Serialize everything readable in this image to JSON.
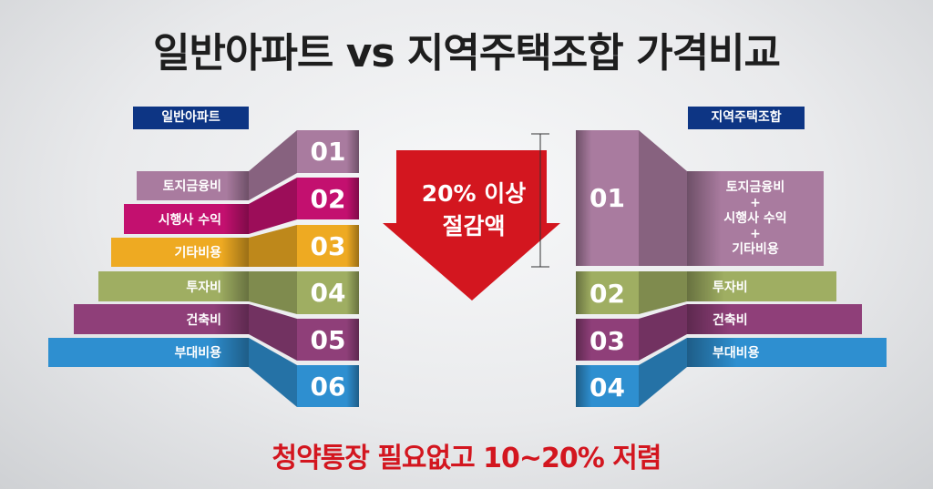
{
  "title": "일반아파트 vs 지역주택조합 가격비교",
  "left": {
    "header": "일반아파트",
    "items": [
      {
        "num": "01",
        "label": "토지금융비",
        "color": "#a97b9f"
      },
      {
        "num": "02",
        "label": "시행사 수익",
        "color": "#c3106f"
      },
      {
        "num": "03",
        "label": "기타비용",
        "color": "#eeaa22"
      },
      {
        "num": "04",
        "label": "투자비",
        "color": "#9fae62"
      },
      {
        "num": "05",
        "label": "건축비",
        "color": "#8f3f79"
      },
      {
        "num": "06",
        "label": "부대비용",
        "color": "#2e8fd0"
      }
    ]
  },
  "right": {
    "header": "지역주택조합",
    "items": [
      {
        "num": "01",
        "label_lines": [
          "토지금융비",
          "+",
          "시행사 수익",
          "+",
          "기타비용"
        ],
        "color": "#a97b9f"
      },
      {
        "num": "02",
        "label": "투자비",
        "color": "#9fae62"
      },
      {
        "num": "03",
        "label": "건축비",
        "color": "#8f3f79"
      },
      {
        "num": "04",
        "label": "부대비용",
        "color": "#2e8fd0"
      }
    ]
  },
  "arrow": {
    "line1": "20% 이상",
    "line2": "절감액",
    "color": "#d3161f"
  },
  "bottom_text": "청약통장 필요없고 10~20% 저렴"
}
